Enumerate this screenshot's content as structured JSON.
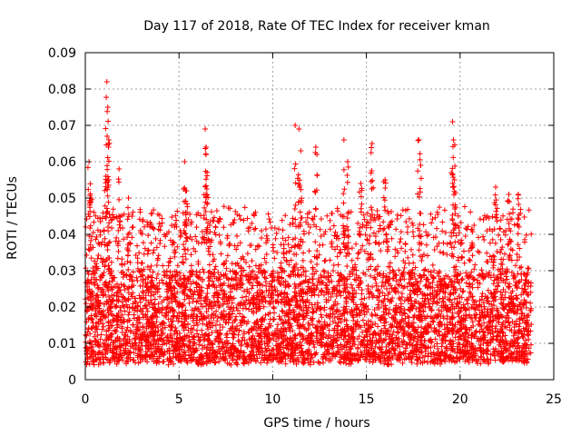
{
  "chart_data": {
    "type": "scatter",
    "title": "Day 117 of 2018, Rate Of TEC Index for receiver kman",
    "xlabel": "GPS time / hours",
    "ylabel": "ROTI / TECUs",
    "xlim": [
      0,
      25
    ],
    "ylim": [
      0,
      0.09
    ],
    "xticks": [
      0,
      5,
      10,
      15,
      20,
      25
    ],
    "xtick_labels": [
      "0",
      "5",
      "10",
      "15",
      "20",
      "25"
    ],
    "yticks": [
      0,
      0.01,
      0.02,
      0.03,
      0.04,
      0.05,
      0.06,
      0.07,
      0.08,
      0.09
    ],
    "ytick_labels": [
      "0",
      "0.01",
      "0.02",
      "0.03",
      "0.04",
      "0.05",
      "0.06",
      "0.07",
      "0.08",
      "0.09"
    ],
    "grid": true,
    "marker": "+",
    "color": "#ff0000",
    "data_range_hours": [
      0,
      23.8
    ],
    "dense_band": [
      0.005,
      0.03
    ],
    "spikes": [
      {
        "x": 0.2,
        "y": 0.06
      },
      {
        "x": 0.3,
        "y": 0.05
      },
      {
        "x": 1.15,
        "y": 0.082
      },
      {
        "x": 1.2,
        "y": 0.075
      },
      {
        "x": 1.25,
        "y": 0.066
      },
      {
        "x": 1.1,
        "y": 0.056
      },
      {
        "x": 1.8,
        "y": 0.058
      },
      {
        "x": 2.3,
        "y": 0.05
      },
      {
        "x": 5.3,
        "y": 0.06
      },
      {
        "x": 5.4,
        "y": 0.052
      },
      {
        "x": 6.4,
        "y": 0.069
      },
      {
        "x": 6.45,
        "y": 0.064
      },
      {
        "x": 6.5,
        "y": 0.057
      },
      {
        "x": 11.2,
        "y": 0.07
      },
      {
        "x": 11.4,
        "y": 0.069
      },
      {
        "x": 11.5,
        "y": 0.063
      },
      {
        "x": 12.3,
        "y": 0.064
      },
      {
        "x": 13.8,
        "y": 0.066
      },
      {
        "x": 14.0,
        "y": 0.06
      },
      {
        "x": 14.7,
        "y": 0.054
      },
      {
        "x": 15.3,
        "y": 0.065
      },
      {
        "x": 16.0,
        "y": 0.055
      },
      {
        "x": 17.8,
        "y": 0.066
      },
      {
        "x": 17.9,
        "y": 0.059
      },
      {
        "x": 19.6,
        "y": 0.071
      },
      {
        "x": 19.65,
        "y": 0.066
      },
      {
        "x": 19.7,
        "y": 0.055
      },
      {
        "x": 21.9,
        "y": 0.053
      },
      {
        "x": 22.6,
        "y": 0.051
      },
      {
        "x": 23.1,
        "y": 0.051
      }
    ]
  }
}
